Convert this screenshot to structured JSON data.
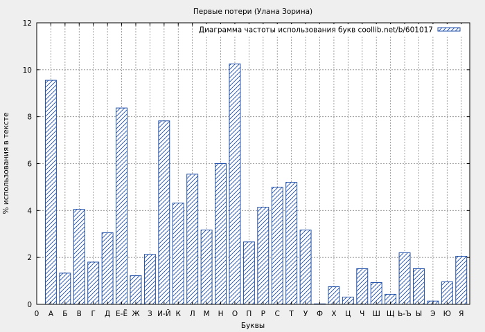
{
  "chart_data": {
    "type": "bar",
    "title": "Первые потери (Улана Зорина)",
    "xlabel": "Буквы",
    "ylabel": "% использования в тексте",
    "legend": "Диаграмма частоты использования букв coollib.net/b/601017",
    "legend_position": "top-right",
    "grid": true,
    "ylim": [
      0,
      12
    ],
    "y_ticks": [
      "0",
      "2",
      "4",
      "6",
      "8",
      "10",
      "12"
    ],
    "x_origin_label": "0",
    "categories": [
      "А",
      "Б",
      "В",
      "Г",
      "Д",
      "Е-Ё",
      "Ж",
      "З",
      "И-Й",
      "К",
      "Л",
      "М",
      "Н",
      "О",
      "П",
      "Р",
      "С",
      "Т",
      "У",
      "Ф",
      "Х",
      "Ц",
      "Ч",
      "Ш",
      "Щ",
      "Ь-Ъ",
      "Ы",
      "Э",
      "Ю",
      "Я"
    ],
    "values": [
      9.55,
      1.33,
      4.05,
      1.8,
      3.05,
      8.37,
      1.22,
      2.13,
      7.82,
      4.32,
      5.55,
      3.17,
      6.0,
      10.25,
      2.66,
      4.14,
      4.99,
      5.2,
      3.17,
      0.02,
      0.75,
      0.31,
      1.52,
      0.93,
      0.43,
      2.2,
      1.52,
      0.14,
      0.96,
      2.05
    ],
    "colors": {
      "bar_stroke": "#1f4fa8",
      "hatch": "#1f4fa8",
      "bar_fill": "#ffffff",
      "plot_bg": "#ffffff",
      "grid": "#8a8a8a"
    }
  }
}
